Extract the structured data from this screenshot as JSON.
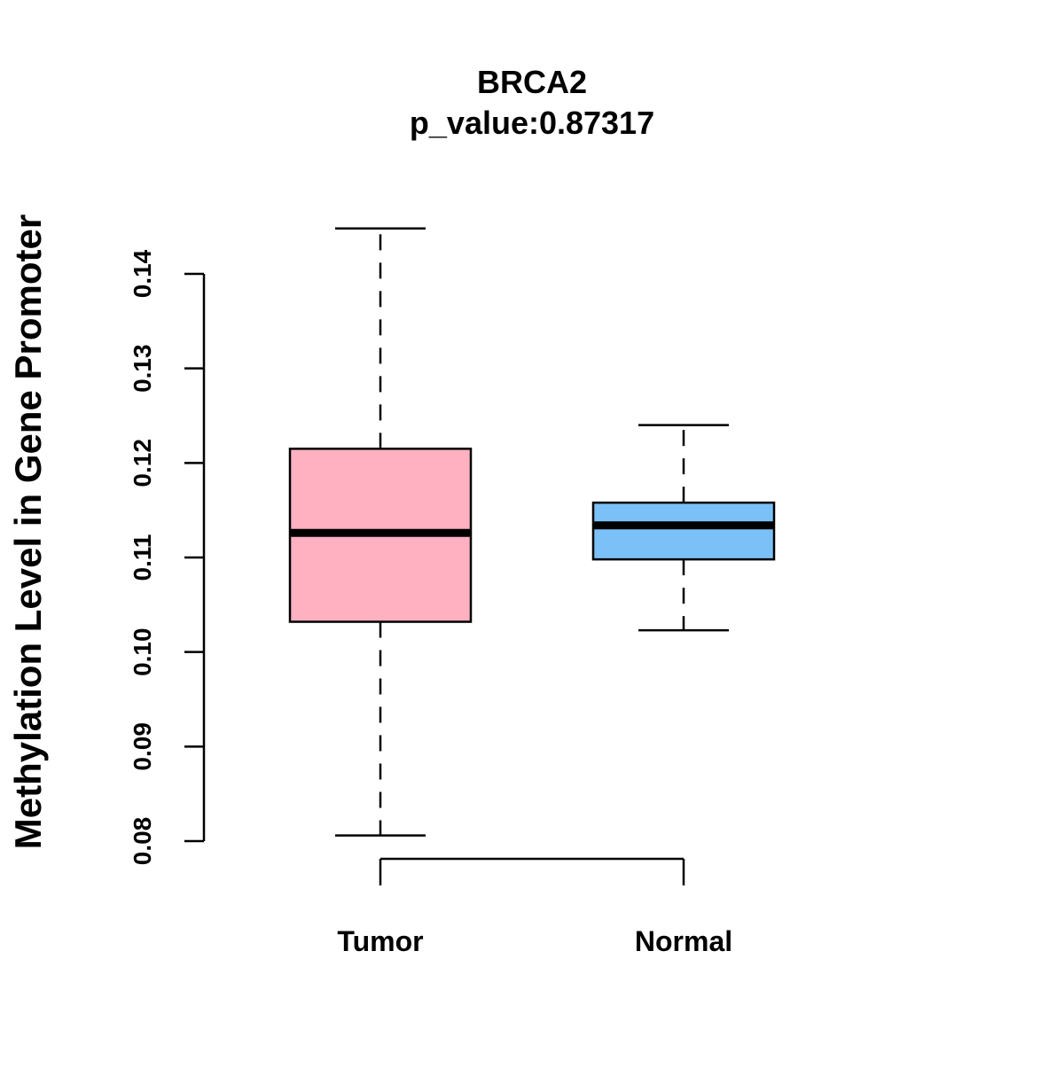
{
  "chart_data": {
    "type": "boxplot",
    "title": "BRCA2",
    "subtitle": "p_value:0.87317",
    "xlabel": "",
    "ylabel": "Methylation Level in Gene Promoter",
    "ylim": [
      0.08,
      0.14
    ],
    "yticks": [
      0.08,
      0.09,
      0.1,
      0.11,
      0.12,
      0.13,
      0.14
    ],
    "ytick_labels": [
      "0.08",
      "0.09",
      "0.10",
      "0.11",
      "0.12",
      "0.13",
      "0.14"
    ],
    "categories": [
      "Tumor",
      "Normal"
    ],
    "boxes": [
      {
        "name": "Tumor",
        "whisker_low": 0.0806,
        "q1": 0.1032,
        "median": 0.1126,
        "q3": 0.1215,
        "whisker_high": 0.1448,
        "color": "#FFB0C1"
      },
      {
        "name": "Normal",
        "whisker_low": 0.1023,
        "q1": 0.1098,
        "median": 0.1134,
        "q3": 0.1158,
        "whisker_high": 0.124,
        "color": "#7BC1F7"
      }
    ],
    "grid": false,
    "legend": "none"
  }
}
